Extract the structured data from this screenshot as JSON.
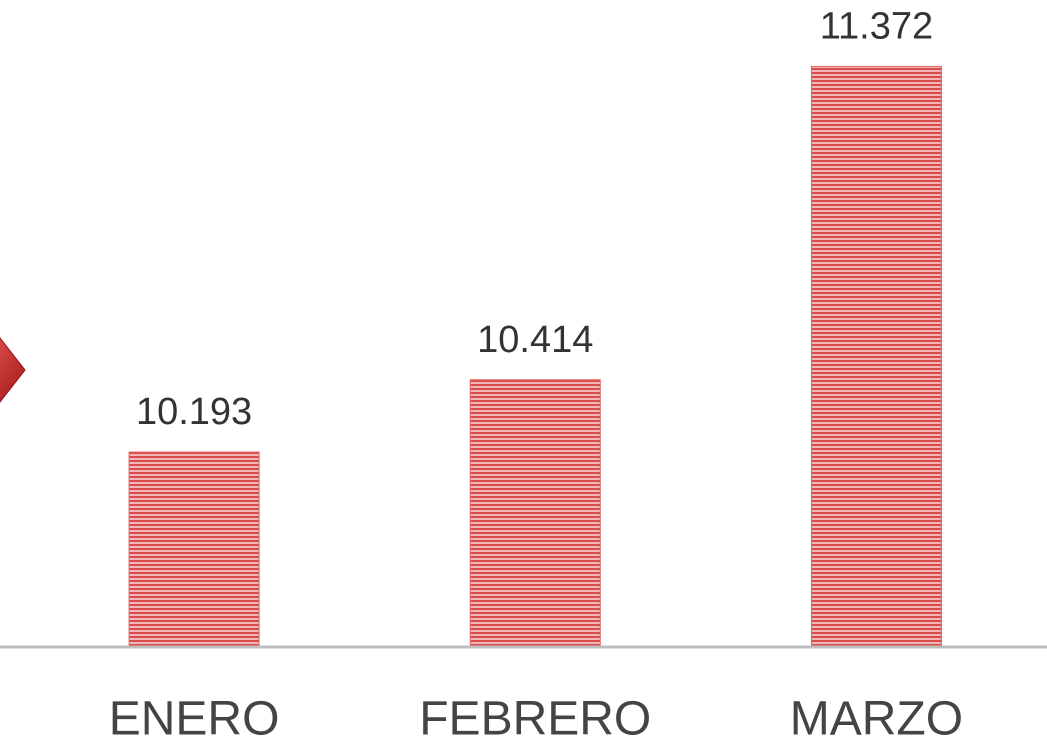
{
  "chart_data": {
    "type": "bar",
    "categories": [
      "ENERO",
      "FEBRERO",
      "MARZO"
    ],
    "values": [
      10193,
      10414,
      11372
    ],
    "value_labels": [
      "10.193",
      "10.414",
      "11.372"
    ],
    "color": "#e06262",
    "ylim": [
      9600,
      11575
    ]
  }
}
